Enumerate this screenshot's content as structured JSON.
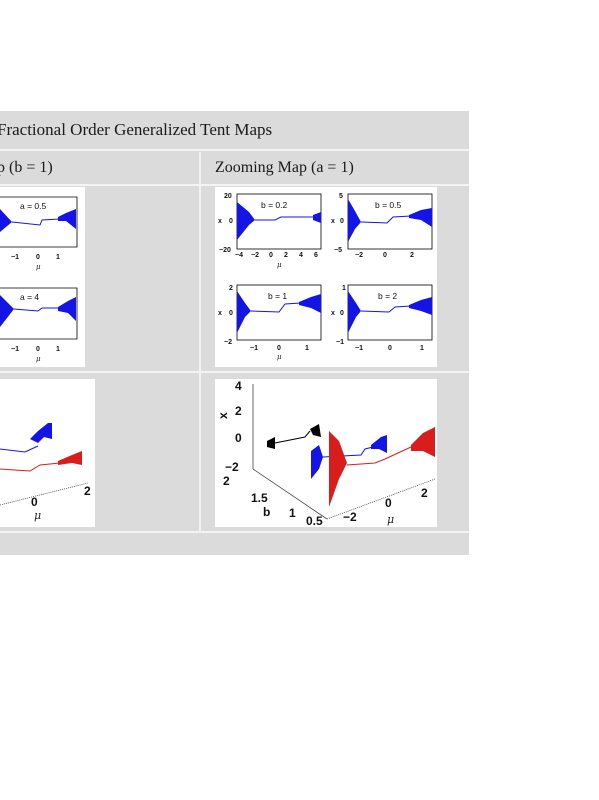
{
  "table": {
    "title": "Fractional Order Generalized Tent Maps",
    "left_column_header": "p (b = 1)",
    "right_column_header": "Zooming Map (a = 1)"
  },
  "colors": {
    "blue": "#1414e6",
    "red": "#d91c1c",
    "black": "#000000",
    "band": "#dcdbdc"
  },
  "panels": {
    "left_top_1": {
      "param": "a = 0.5",
      "xticks": [
        "−1",
        "0",
        "1"
      ],
      "xlabel": "μ"
    },
    "left_top_2": {
      "param": "a = 4",
      "xticks": [
        "−1",
        "0",
        "1"
      ],
      "xlabel": "μ"
    },
    "right_top_1": {
      "param": "b = 0.2",
      "yticks": [
        "20",
        "0",
        "−20"
      ],
      "xticks": [
        "−4",
        "−2",
        "0",
        "2",
        "4",
        "6"
      ],
      "ylabel": "x",
      "xlabel": "μ"
    },
    "right_top_2": {
      "param": "b = 0.5",
      "yticks": [
        "5",
        "0",
        "−5"
      ],
      "xticks": [
        "−2",
        "0",
        "2"
      ],
      "ylabel": "x",
      "xlabel": "μ"
    },
    "right_top_3": {
      "param": "b = 1",
      "yticks": [
        "2",
        "0",
        "−2"
      ],
      "xticks": [
        "−1",
        "0",
        "1"
      ],
      "ylabel": "x",
      "xlabel": "μ"
    },
    "right_top_4": {
      "param": "b = 2",
      "yticks": [
        "1",
        "0",
        "−1"
      ],
      "xticks": [
        "−1",
        "0",
        "1"
      ],
      "ylabel": "x",
      "xlabel": "μ"
    },
    "left_3d": {
      "mu_ticks": [
        "0",
        "2"
      ],
      "xlabel": "μ"
    },
    "right_3d": {
      "x_ticks": [
        "4",
        "2",
        "0",
        "−2"
      ],
      "b_ticks": [
        "2",
        "1.5",
        "1",
        "0.5"
      ],
      "mu_ticks": [
        "−2",
        "0",
        "2"
      ],
      "xlabel_vert": "x",
      "blabel": "b",
      "mulabel": "μ"
    }
  }
}
